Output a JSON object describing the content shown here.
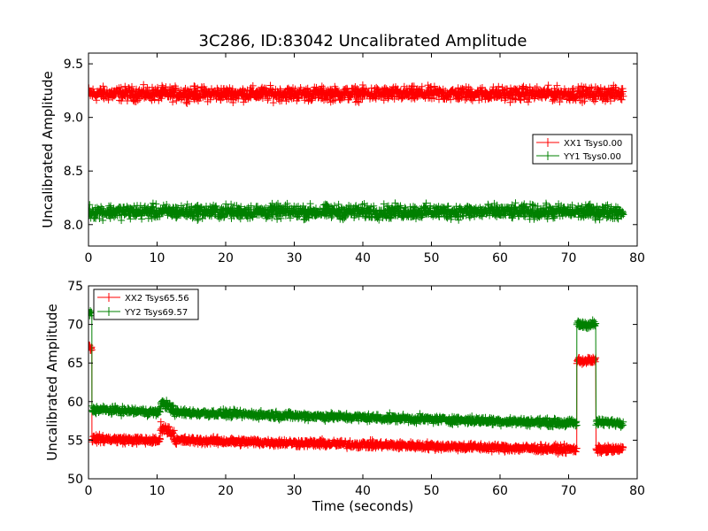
{
  "title": "3C286, ID:83042 Uncalibrated Amplitude",
  "colors": {
    "XX": "#ff0000",
    "YY": "#008000",
    "axes": "#000000",
    "background": "#ffffff"
  },
  "chart_data": [
    {
      "type": "scatter",
      "title": "3C286, ID:83042 Uncalibrated Amplitude",
      "xlabel": "",
      "ylabel": "Uncalibrated Amplitude",
      "xlim": [
        0,
        80
      ],
      "ylim": [
        7.8,
        9.6
      ],
      "xticks": [
        "0",
        "10",
        "20",
        "30",
        "40",
        "50",
        "60",
        "70",
        "80"
      ],
      "yticks": [
        "8.0",
        "8.5",
        "9.0",
        "9.5"
      ],
      "grid": false,
      "legend_position": "center-right",
      "x_range": [
        0,
        78
      ],
      "series": [
        {
          "name": "XX1 Tsys0.00",
          "color": "#ff0000",
          "marker": "+",
          "segments": [
            {
              "x0": 0,
              "x1": 78,
              "y0": 9.22,
              "y1": 9.22,
              "noise": 0.06
            }
          ]
        },
        {
          "name": "YY1 Tsys0.00",
          "color": "#008000",
          "marker": "+",
          "segments": [
            {
              "x0": 0,
              "x1": 78,
              "y0": 8.12,
              "y1": 8.12,
              "noise": 0.06
            }
          ]
        }
      ]
    },
    {
      "type": "scatter",
      "title": "",
      "xlabel": "Time (seconds)",
      "ylabel": "Uncalibrated Amplitude",
      "xlim": [
        0,
        80
      ],
      "ylim": [
        50,
        75
      ],
      "xticks": [
        "0",
        "10",
        "20",
        "30",
        "40",
        "50",
        "60",
        "70",
        "80"
      ],
      "yticks": [
        "50",
        "55",
        "60",
        "65",
        "70",
        "75"
      ],
      "grid": false,
      "legend_position": "top-left",
      "series": [
        {
          "name": "XX2 Tsys65.56",
          "color": "#ff0000",
          "marker": "+",
          "segments": [
            {
              "x0": 0,
              "x1": 0.5,
              "y0": 67,
              "y1": 67,
              "noise": 0.5
            },
            {
              "x0": 0.5,
              "x1": 10.5,
              "y0": 55.2,
              "y1": 54.9,
              "noise": 0.45
            },
            {
              "x0": 10.5,
              "x1": 12.5,
              "y0": 56.8,
              "y1": 55.8,
              "noise": 0.6
            },
            {
              "x0": 12.5,
              "x1": 71.2,
              "y0": 55.0,
              "y1": 53.8,
              "noise": 0.45
            },
            {
              "x0": 71.2,
              "x1": 74.0,
              "y0": 65.3,
              "y1": 65.3,
              "noise": 0.45
            },
            {
              "x0": 74.0,
              "x1": 78,
              "y0": 53.8,
              "y1": 53.8,
              "noise": 0.45
            }
          ]
        },
        {
          "name": "YY2 Tsys69.57",
          "color": "#008000",
          "marker": "+",
          "segments": [
            {
              "x0": 0,
              "x1": 0.5,
              "y0": 71.5,
              "y1": 71.5,
              "noise": 0.5
            },
            {
              "x0": 0.5,
              "x1": 10.5,
              "y0": 59.0,
              "y1": 58.6,
              "noise": 0.45
            },
            {
              "x0": 10.5,
              "x1": 12.5,
              "y0": 60.0,
              "y1": 59.0,
              "noise": 0.6
            },
            {
              "x0": 12.5,
              "x1": 71.2,
              "y0": 58.6,
              "y1": 57.2,
              "noise": 0.45
            },
            {
              "x0": 71.2,
              "x1": 74.0,
              "y0": 70.0,
              "y1": 70.0,
              "noise": 0.5
            },
            {
              "x0": 74.0,
              "x1": 78,
              "y0": 57.3,
              "y1": 57.3,
              "noise": 0.45
            }
          ]
        }
      ]
    }
  ]
}
